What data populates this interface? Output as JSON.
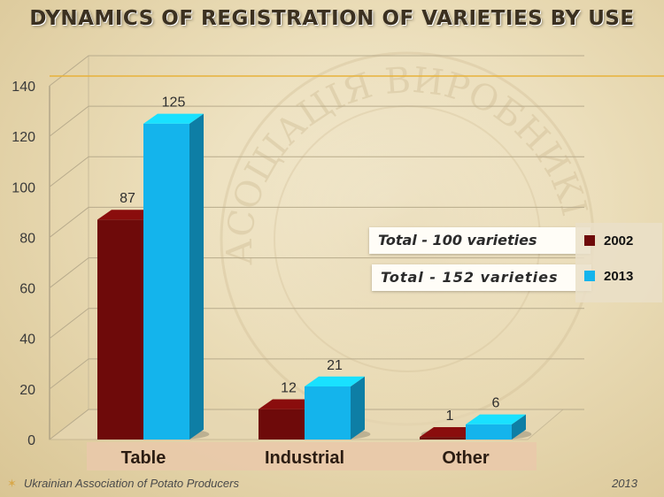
{
  "chart_data": {
    "type": "bar",
    "title": "DYNAMICS OF REGISTRATION OF VARIETIES BY USE",
    "categories": [
      "Table",
      "Industrial",
      "Other"
    ],
    "series": [
      {
        "name": "2002",
        "values": [
          87,
          12,
          1
        ],
        "color": "#6e0a0a"
      },
      {
        "name": "2013",
        "values": [
          125,
          21,
          6
        ],
        "color": "#14b4ec"
      }
    ],
    "ylim": [
      0,
      140
    ],
    "yticks": [
      "0",
      "20",
      "40",
      "60",
      "80",
      "100",
      "120",
      "140"
    ],
    "grid": true,
    "legend": "right",
    "annotations": [
      "Total - 100 varieties",
      "Total - 152 varieties"
    ]
  },
  "watermark": "АСОЦІАЦІЯ ВИРОБНИКІВ КАРТОПЛІ",
  "footer": {
    "left": "Ukrainian Association of Potato Producers",
    "right": "2013"
  }
}
